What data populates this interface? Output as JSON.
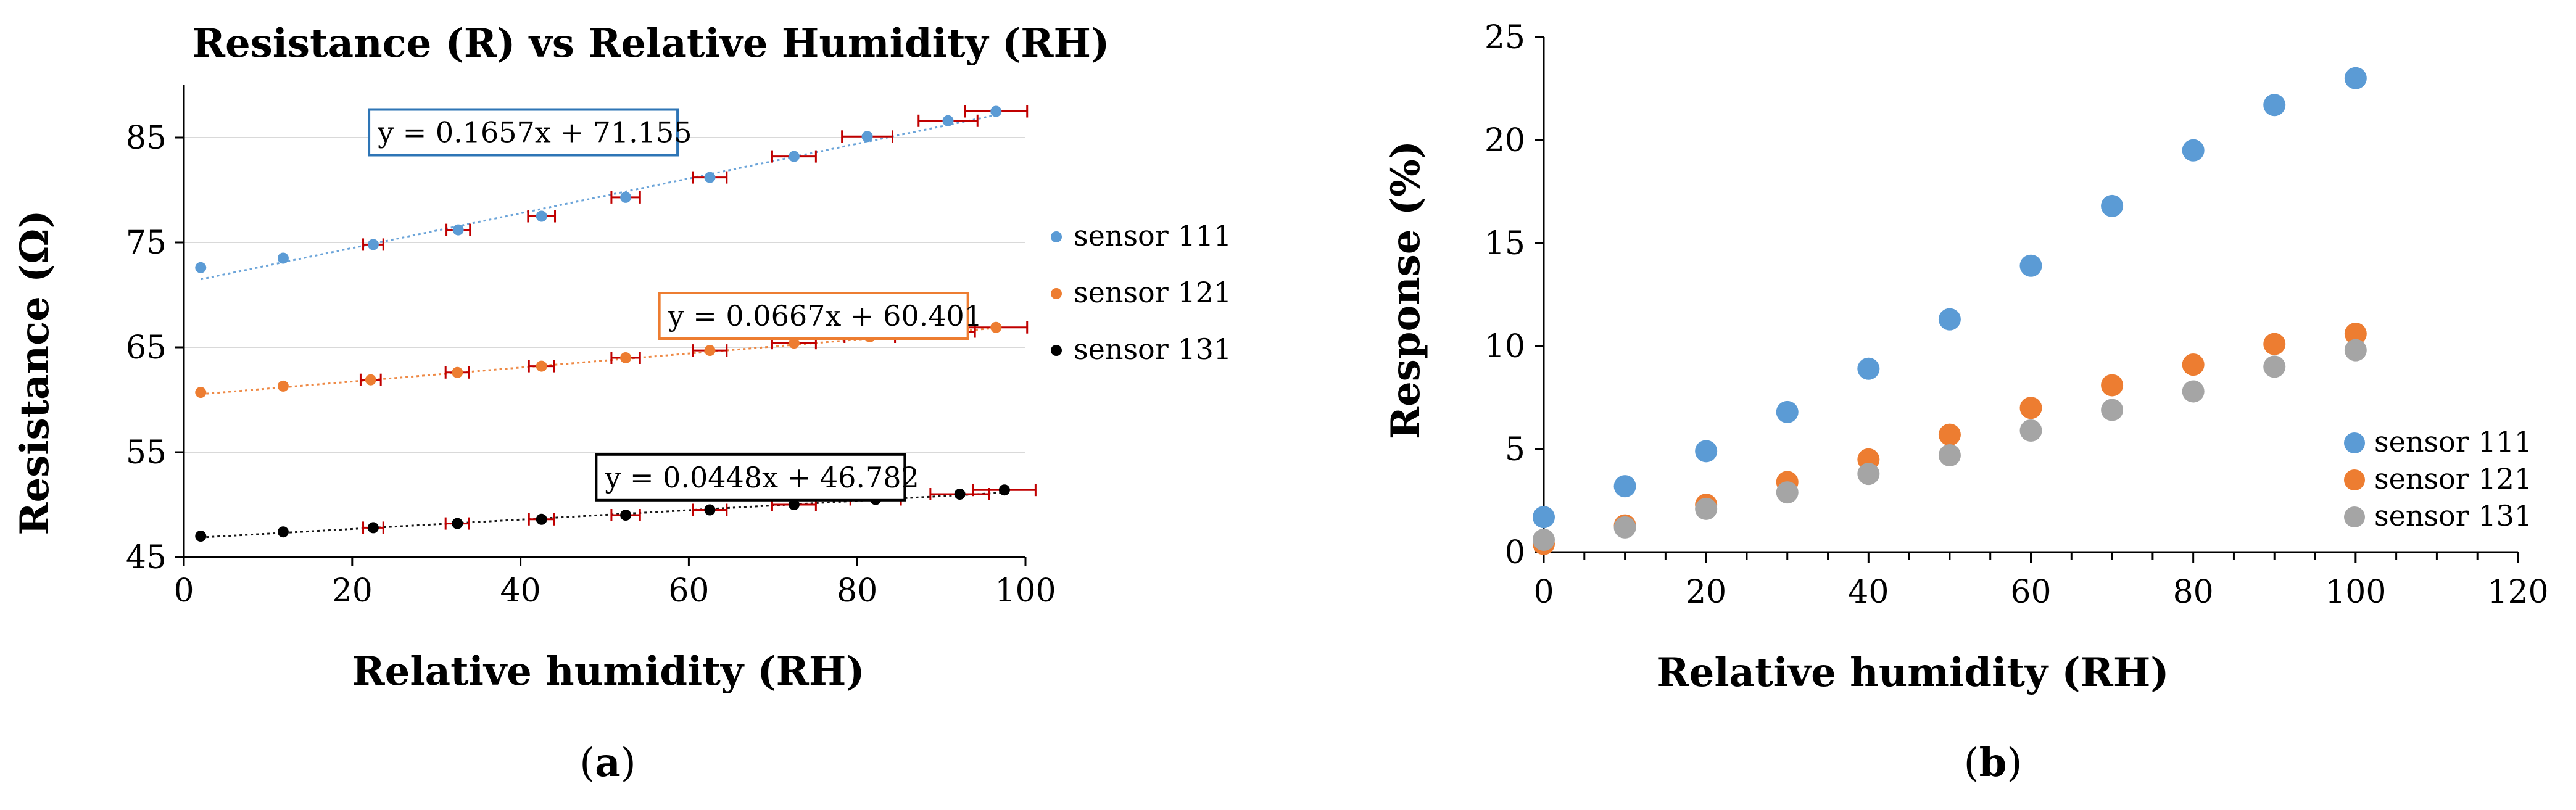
{
  "colors": {
    "sensor111": "#5b9bd5",
    "sensor121": "#ed7d31",
    "sensor131": "#000000",
    "sensor131b": "#a5a5a5",
    "errorbar": "#c00000",
    "axis": "#000000"
  },
  "chart_data": [
    {
      "id": "a",
      "type": "scatter",
      "title": "Resistance (R) vs Relative Humidity (RH)",
      "xlabel": "Relative humidity (RH)",
      "ylabel": "Resistance (Ω)",
      "panel_label": {
        "open": "(",
        "letter": "a",
        "close": ")"
      },
      "xlim": [
        0,
        100
      ],
      "ylim": [
        45,
        90
      ],
      "xticks": [
        0,
        20,
        40,
        60,
        80,
        100
      ],
      "yticks": [
        45,
        55,
        65,
        75,
        85
      ],
      "legend_position": "right",
      "series": [
        {
          "name": "sensor 111",
          "color": "#5b9bd5",
          "x": [
            2,
            11.8,
            22.5,
            32.6,
            42.5,
            52.5,
            62.5,
            72.5,
            81.2,
            90.8,
            96.5
          ],
          "y": [
            72.6,
            73.5,
            74.8,
            76.2,
            77.5,
            79.3,
            81.2,
            83.2,
            85.1,
            86.6,
            87.5
          ],
          "xerr": [
            0,
            0,
            1.2,
            1.4,
            1.6,
            1.7,
            2.0,
            2.6,
            3.0,
            3.5,
            3.7
          ],
          "trendline": {
            "label": "y = 0.1657x + 71.155",
            "slope": 0.1657,
            "intercept": 71.155,
            "box_color": "#2e75b6",
            "box_anchor_x": 22,
            "box_anchor_y": 85.5
          }
        },
        {
          "name": "sensor 121",
          "color": "#ed7d31",
          "x": [
            2,
            11.8,
            22.2,
            32.5,
            42.5,
            52.5,
            62.5,
            72.5,
            81.5,
            90.5,
            96.5
          ],
          "y": [
            60.7,
            61.3,
            61.9,
            62.6,
            63.2,
            64.0,
            64.7,
            65.4,
            66.0,
            66.5,
            66.9
          ],
          "xerr": [
            0,
            0,
            1.2,
            1.4,
            1.5,
            1.7,
            2.0,
            2.6,
            3.0,
            3.5,
            3.7
          ],
          "trendline": {
            "label": "y = 0.0667x + 60.401",
            "slope": 0.0667,
            "intercept": 60.401,
            "box_color": "#ed7d31",
            "box_anchor_x": 56.5,
            "box_anchor_y": 68.0
          }
        },
        {
          "name": "sensor 131",
          "color": "#000000",
          "x": [
            2,
            11.8,
            22.5,
            32.5,
            42.5,
            52.5,
            62.5,
            72.5,
            82.2,
            92.2,
            97.5
          ],
          "y": [
            47.0,
            47.4,
            47.8,
            48.2,
            48.6,
            49.0,
            49.5,
            50.0,
            50.5,
            51.0,
            51.4
          ],
          "xerr": [
            0,
            0,
            1.2,
            1.4,
            1.5,
            1.7,
            2.0,
            2.6,
            3.0,
            3.5,
            3.7
          ],
          "trendline": {
            "label": "y = 0.0448x + 46.782",
            "slope": 0.0448,
            "intercept": 46.782,
            "box_color": "#000000",
            "box_anchor_x": 49,
            "box_anchor_y": 52.6
          }
        }
      ]
    },
    {
      "id": "b",
      "type": "scatter",
      "title": "",
      "xlabel": "Relative humidity (RH)",
      "ylabel": "Response (%)",
      "panel_label": {
        "open": "(",
        "letter": "b",
        "close": ")"
      },
      "xlim": [
        0,
        120
      ],
      "ylim": [
        0,
        25
      ],
      "xticks": [
        0,
        20,
        40,
        60,
        80,
        100,
        120
      ],
      "yticks": [
        0,
        5,
        10,
        15,
        20,
        25
      ],
      "legend_position": "bottom-right",
      "series": [
        {
          "name": "sensor 111",
          "color": "#5b9bd5",
          "x": [
            0,
            10,
            20,
            30,
            40,
            50,
            60,
            70,
            80,
            90,
            100
          ],
          "y": [
            1.7,
            3.2,
            4.9,
            6.8,
            8.9,
            11.3,
            13.9,
            16.8,
            19.5,
            21.7,
            23.0
          ]
        },
        {
          "name": "sensor 121",
          "color": "#ed7d31",
          "x": [
            0,
            10,
            20,
            30,
            40,
            50,
            60,
            70,
            80,
            90,
            100
          ],
          "y": [
            0.4,
            1.3,
            2.3,
            3.4,
            4.5,
            5.7,
            7.0,
            8.1,
            9.1,
            10.1,
            10.6
          ]
        },
        {
          "name": "sensor 131",
          "color": "#a5a5a5",
          "x": [
            0,
            10,
            20,
            30,
            40,
            50,
            60,
            70,
            80,
            90,
            100
          ],
          "y": [
            0.6,
            1.2,
            2.1,
            2.9,
            3.8,
            4.7,
            5.9,
            6.9,
            7.8,
            9.0,
            9.8
          ]
        }
      ]
    }
  ]
}
